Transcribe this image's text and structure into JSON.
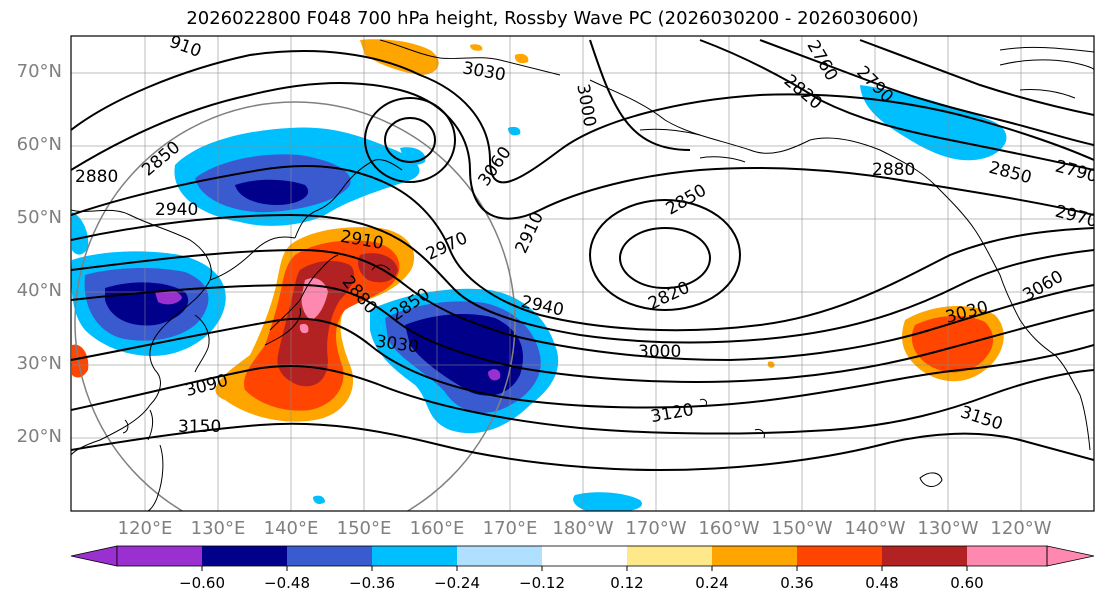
{
  "title": "2026022800 F048 700 hPa height, Rossby Wave PC (2026030200 - 2026030600)",
  "lat_labels": [
    "70°N",
    "60°N",
    "50°N",
    "40°N",
    "30°N",
    "20°N"
  ],
  "lon_labels": [
    "120°E",
    "130°E",
    "140°E",
    "150°E",
    "160°E",
    "170°E",
    "180°W",
    "170°W",
    "160°W",
    "150°W",
    "140°W",
    "130°W",
    "120°W"
  ],
  "colorbar": {
    "tick_labels": [
      "−0.60",
      "−0.48",
      "−0.36",
      "−0.24",
      "−0.12",
      "0.12",
      "0.24",
      "0.36",
      "0.48",
      "0.60"
    ],
    "colors": [
      "#9b30d0",
      "#00008b",
      "#3a5bd0",
      "#00bfff",
      "#b0e0ff",
      "#ffffff",
      "#ffe88a",
      "#ffa500",
      "#ff4500",
      "#b22222",
      "#ff88b0"
    ]
  },
  "contour_labels": [
    "910",
    "3030",
    "3000",
    "2760",
    "2790",
    "2820",
    "2850",
    "2880",
    "2940",
    "2910",
    "2970",
    "3060",
    "2910",
    "2850",
    "2880",
    "2850",
    "2820",
    "2940",
    "3030",
    "3000",
    "3090",
    "3120",
    "3150",
    "3150",
    "2880",
    "2850",
    "2790",
    "2970",
    "3060",
    "3030"
  ]
}
